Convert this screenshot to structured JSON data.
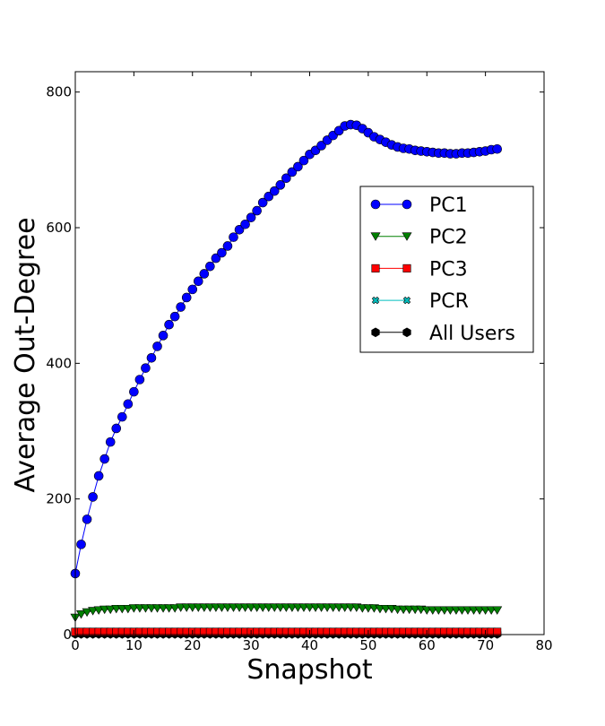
{
  "chart_data": {
    "type": "line",
    "title": "",
    "xlabel": "Snapshot",
    "ylabel": "Average Out-Degree",
    "xlim": [
      0,
      80
    ],
    "ylim": [
      0,
      830
    ],
    "xticks": [
      0,
      10,
      20,
      30,
      40,
      50,
      60,
      70,
      80
    ],
    "yticks": [
      0,
      200,
      400,
      600,
      800
    ],
    "grid": false,
    "legend_position": "center-right",
    "x": [
      0,
      1,
      2,
      3,
      4,
      5,
      6,
      7,
      8,
      9,
      10,
      11,
      12,
      13,
      14,
      15,
      16,
      17,
      18,
      19,
      20,
      21,
      22,
      23,
      24,
      25,
      26,
      27,
      28,
      29,
      30,
      31,
      32,
      33,
      34,
      35,
      36,
      37,
      38,
      39,
      40,
      41,
      42,
      43,
      44,
      45,
      46,
      47,
      48,
      49,
      50,
      51,
      52,
      53,
      54,
      55,
      56,
      57,
      58,
      59,
      60,
      61,
      62,
      63,
      64,
      65,
      66,
      67,
      68,
      69,
      70,
      71,
      72
    ],
    "series": [
      {
        "name": "PC1",
        "color": "#0000ff",
        "marker": "circle",
        "values": [
          90,
          133,
          170,
          203,
          234,
          259,
          284,
          304,
          321,
          340,
          358,
          376,
          393,
          408,
          425,
          441,
          457,
          469,
          483,
          497,
          509,
          521,
          532,
          543,
          555,
          563,
          573,
          586,
          597,
          605,
          615,
          625,
          637,
          646,
          654,
          663,
          673,
          682,
          690,
          699,
          708,
          714,
          721,
          729,
          736,
          743,
          750,
          752,
          751,
          746,
          740,
          734,
          730,
          726,
          722,
          719,
          717,
          716,
          714,
          713,
          712,
          711,
          710,
          710,
          709,
          709,
          710,
          710,
          711,
          712,
          713,
          715,
          716
        ]
      },
      {
        "name": "PC2",
        "color": "#008000",
        "marker": "triangle-down",
        "values": [
          25,
          30,
          33,
          35,
          36,
          37,
          37,
          38,
          38,
          38,
          39,
          39,
          39,
          39,
          39,
          39,
          39,
          39,
          40,
          40,
          40,
          40,
          40,
          40,
          40,
          40,
          40,
          40,
          40,
          40,
          40,
          40,
          40,
          40,
          40,
          40,
          40,
          40,
          40,
          40,
          40,
          40,
          40,
          40,
          40,
          40,
          40,
          40,
          40,
          39,
          39,
          39,
          38,
          38,
          38,
          37,
          37,
          37,
          37,
          37,
          36,
          36,
          36,
          36,
          36,
          36,
          36,
          36,
          36,
          36,
          36,
          36,
          36
        ]
      },
      {
        "name": "PC3",
        "color": "#ff0000",
        "marker": "square",
        "values": [
          4,
          4,
          4,
          4,
          4,
          4,
          4,
          4,
          4,
          4,
          4,
          4,
          4,
          4,
          4,
          4,
          4,
          4,
          4,
          4,
          4,
          4,
          4,
          4,
          4,
          4,
          4,
          4,
          4,
          4,
          4,
          4,
          4,
          4,
          4,
          4,
          4,
          4,
          4,
          4,
          4,
          4,
          4,
          4,
          4,
          4,
          4,
          4,
          4,
          4,
          4,
          4,
          4,
          4,
          4,
          4,
          4,
          4,
          4,
          4,
          4,
          4,
          4,
          4,
          4,
          4,
          4,
          4,
          4,
          4,
          4,
          4,
          4
        ]
      },
      {
        "name": "PCR",
        "color": "#00bfbf",
        "marker": "x",
        "values": [
          2,
          2,
          2,
          2,
          2,
          2,
          2,
          2,
          2,
          2,
          2,
          2,
          2,
          2,
          2,
          2,
          2,
          2,
          2,
          2,
          2,
          2,
          2,
          2,
          2,
          2,
          2,
          2,
          2,
          2,
          2,
          2,
          2,
          2,
          2,
          2,
          2,
          2,
          2,
          2,
          2,
          2,
          2,
          2,
          2,
          2,
          2,
          2,
          2,
          2,
          2,
          2,
          2,
          2,
          2,
          2,
          2,
          2,
          2,
          2,
          2,
          2,
          2,
          2,
          2,
          2,
          2,
          2,
          2,
          2,
          2,
          2,
          2
        ]
      },
      {
        "name": "All Users",
        "color": "#000000",
        "marker": "hexagon",
        "values": [
          1,
          1,
          1,
          1,
          1,
          1,
          1,
          1,
          1,
          1,
          1,
          1,
          1,
          1,
          1,
          1,
          1,
          1,
          1,
          1,
          1,
          1,
          1,
          1,
          1,
          1,
          1,
          1,
          1,
          1,
          1,
          1,
          1,
          1,
          1,
          1,
          1,
          1,
          1,
          1,
          1,
          1,
          1,
          1,
          1,
          1,
          1,
          1,
          1,
          1,
          1,
          1,
          1,
          1,
          1,
          1,
          1,
          1,
          1,
          1,
          1,
          1,
          1,
          1,
          1,
          1,
          1,
          1,
          1,
          1,
          1,
          1,
          1
        ]
      }
    ]
  }
}
